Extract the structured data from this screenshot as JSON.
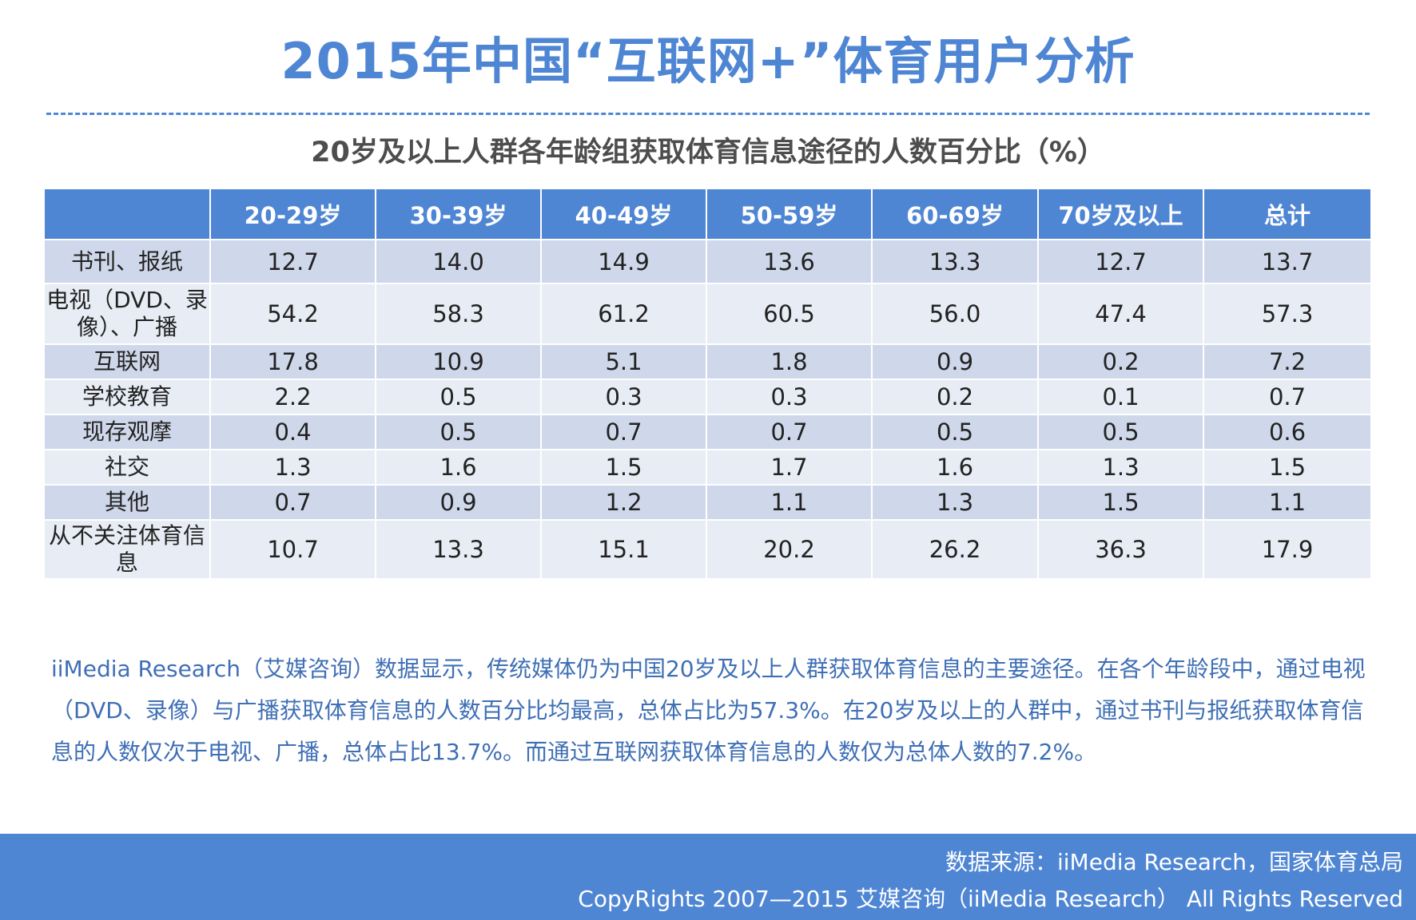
{
  "title": "2015年中国“互联网+”体育用户分析",
  "chart_data": {
    "type": "table",
    "title": "20岁及以上人群各年龄组获取体育信息途径的人数百分比（%）",
    "columns": [
      "",
      "20-29岁",
      "30-39岁",
      "40-49岁",
      "50-59岁",
      "60-69岁",
      "70岁及以上",
      "总计"
    ],
    "rows": [
      {
        "label": "书刊、报纸",
        "values": [
          "12.7",
          "14.0",
          "14.9",
          "13.6",
          "13.3",
          "12.7",
          "13.7"
        ]
      },
      {
        "label": "电视（DVD、录像）、广播",
        "values": [
          "54.2",
          "58.3",
          "61.2",
          "60.5",
          "56.0",
          "47.4",
          "57.3"
        ]
      },
      {
        "label": "互联网",
        "values": [
          "17.8",
          "10.9",
          "5.1",
          "1.8",
          "0.9",
          "0.2",
          "7.2"
        ]
      },
      {
        "label": "学校教育",
        "values": [
          "2.2",
          "0.5",
          "0.3",
          "0.3",
          "0.2",
          "0.1",
          "0.7"
        ]
      },
      {
        "label": "现存观摩",
        "values": [
          "0.4",
          "0.5",
          "0.7",
          "0.7",
          "0.5",
          "0.5",
          "0.6"
        ]
      },
      {
        "label": "社交",
        "values": [
          "1.3",
          "1.6",
          "1.5",
          "1.7",
          "1.6",
          "1.3",
          "1.5"
        ]
      },
      {
        "label": "其他",
        "values": [
          "0.7",
          "0.9",
          "1.2",
          "1.1",
          "1.3",
          "1.5",
          "1.1"
        ]
      },
      {
        "label": "从不关注体育信息",
        "values": [
          "10.7",
          "13.3",
          "15.1",
          "20.2",
          "26.2",
          "36.3",
          "17.9"
        ]
      }
    ]
  },
  "summary": "iiMedia Research（艾媒咨询）数据显示，传统媒体仍为中国20岁及以上人群获取体育信息的主要途径。在各个年龄段中，通过电视（DVD、录像）与广播获取体育信息的人数百分比均最高，总体占比为57.3%。在20岁及以上的人群中，通过书刊与报纸获取体育信息的人数仅次于电视、广播，总体占比13.7%。而通过互联网获取体育信息的人数仅为总体人数的7.2%。",
  "footer": {
    "source": "数据来源：iiMedia Research，国家体育总局",
    "copyright": "CopyRights 2007—2015 艾媒咨询（iiMedia Research） All Rights Reserved"
  },
  "colors": {
    "accent": "#4f86d4",
    "row_dark": "#cfd8ea",
    "row_light": "#e8ecf4"
  }
}
